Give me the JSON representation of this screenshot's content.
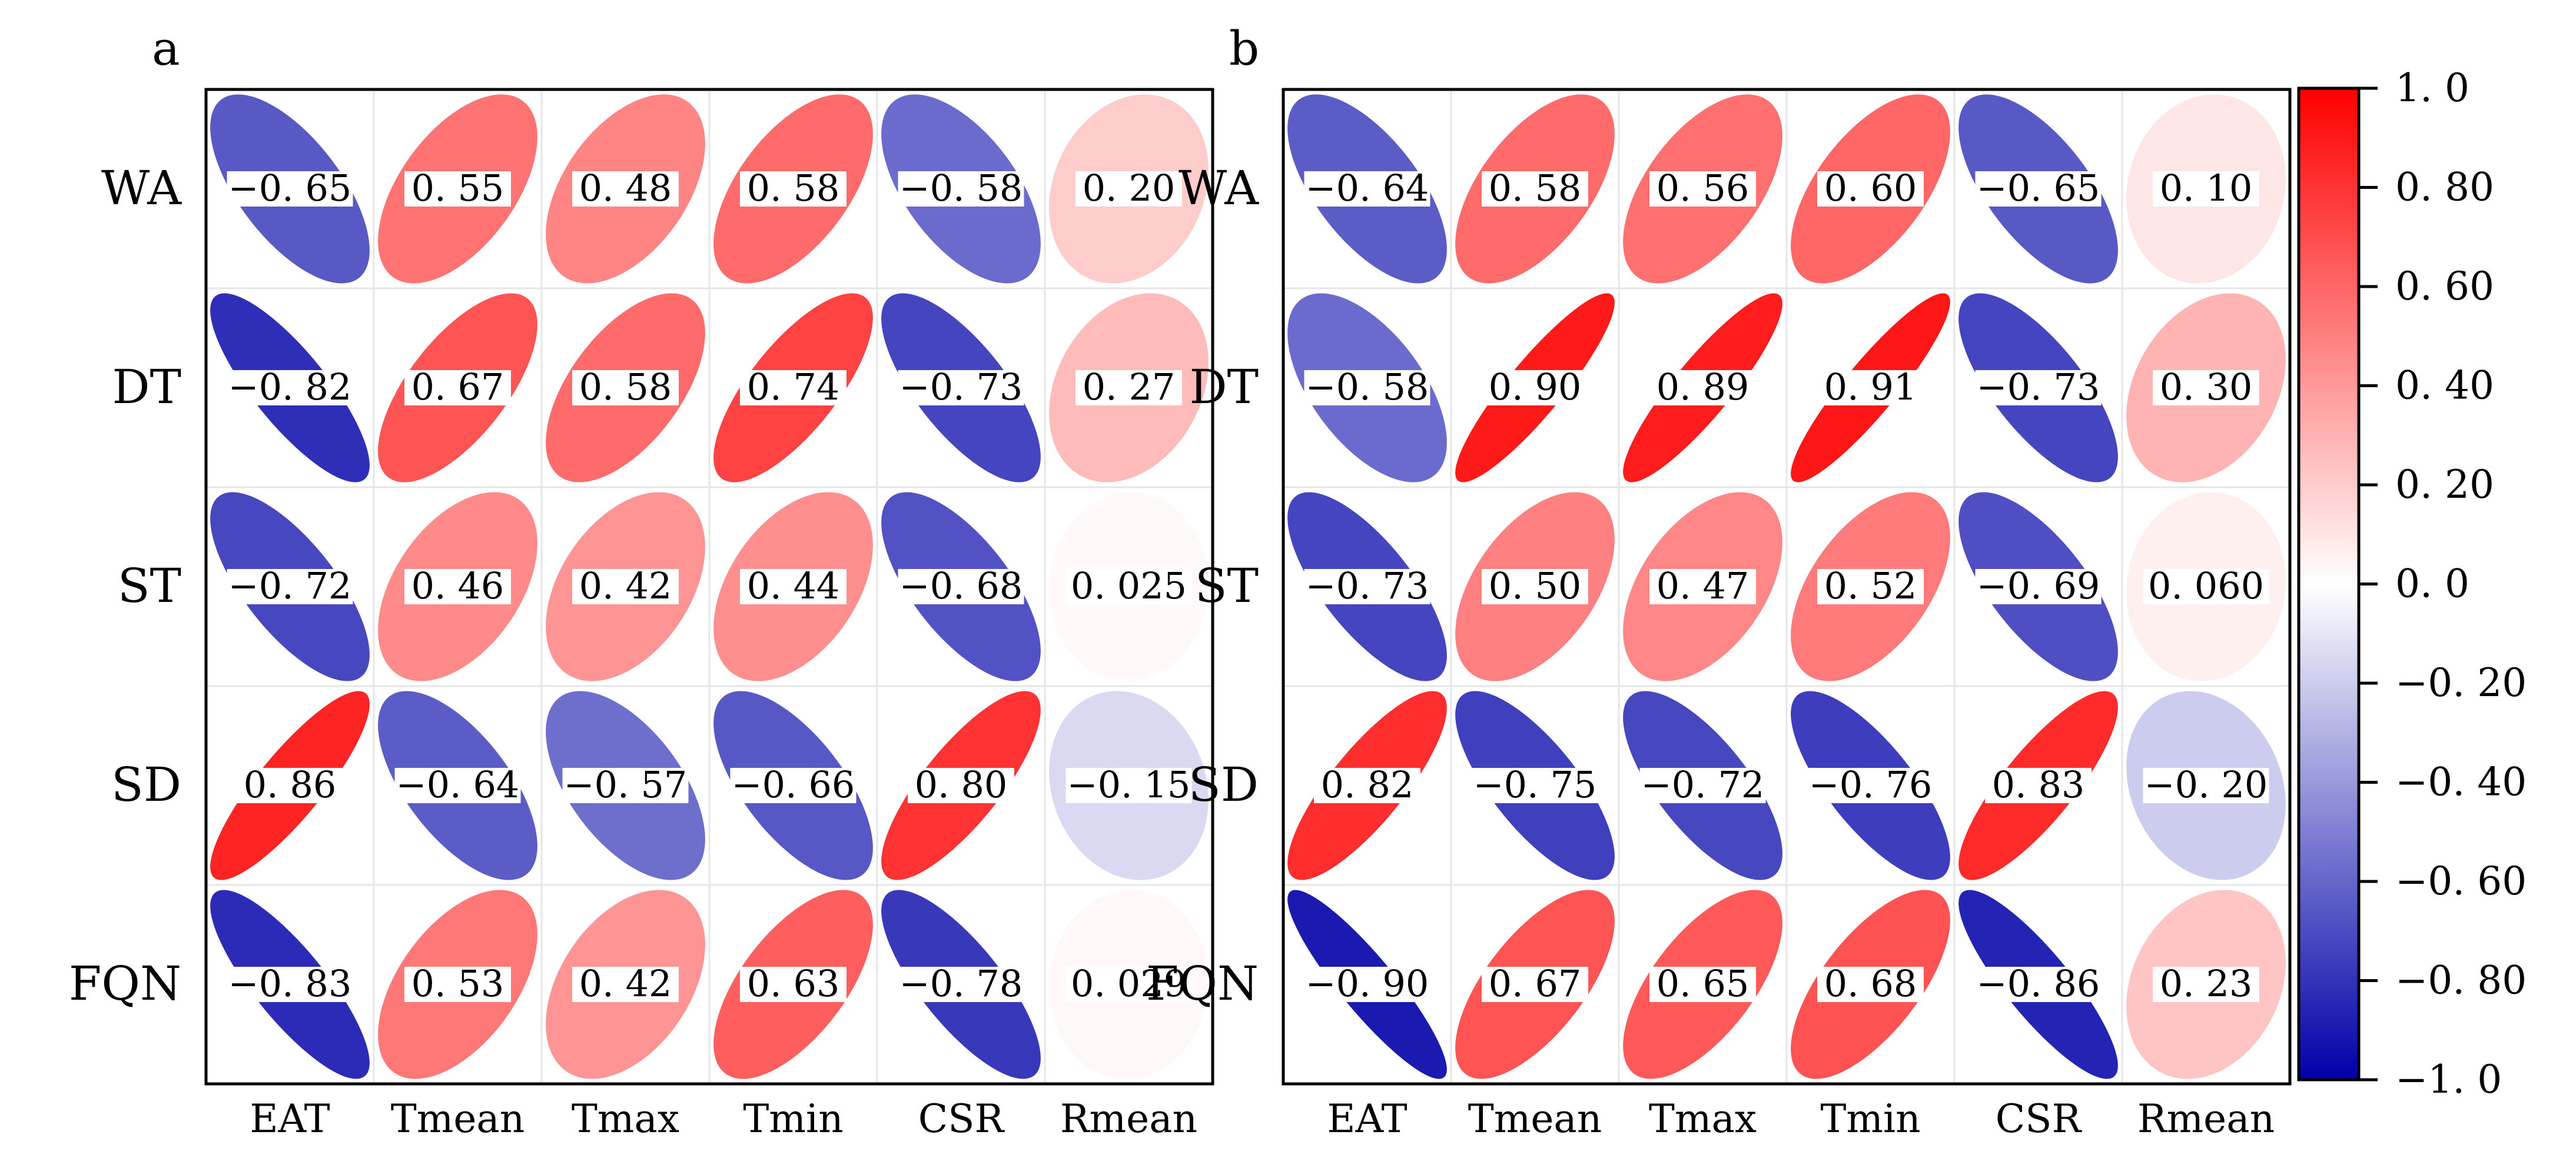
{
  "chart_data": [
    {
      "type": "heatmap",
      "panel_label": "a",
      "rows": [
        "WA",
        "DT",
        "ST",
        "SD",
        "FQN"
      ],
      "columns": [
        "EAT",
        "Tmean",
        "Tmax",
        "Tmin",
        "CSR",
        "Rmean"
      ],
      "values": [
        [
          -0.65,
          0.55,
          0.48,
          0.58,
          -0.58,
          0.2
        ],
        [
          -0.82,
          0.67,
          0.58,
          0.74,
          -0.73,
          0.27
        ],
        [
          -0.72,
          0.46,
          0.42,
          0.44,
          -0.68,
          0.025
        ],
        [
          0.86,
          -0.64,
          -0.57,
          -0.66,
          0.8,
          -0.15
        ],
        [
          -0.83,
          0.53,
          0.42,
          0.63,
          -0.78,
          0.029
        ]
      ],
      "value_labels": [
        [
          "−0. 65",
          "0. 55",
          "0. 48",
          "0. 58",
          "−0. 58",
          "0. 20"
        ],
        [
          "−0. 82",
          "0. 67",
          "0. 58",
          "0. 74",
          "−0. 73",
          "0. 27"
        ],
        [
          "−0. 72",
          "0. 46",
          "0. 42",
          "0. 44",
          "−0. 68",
          "0. 025"
        ],
        [
          "0. 86",
          "−0. 64",
          "−0. 57",
          "−0. 66",
          "0. 80",
          "−0. 15"
        ],
        [
          "−0. 83",
          "0. 53",
          "0. 42",
          "0. 63",
          "−0. 78",
          "0. 029"
        ]
      ]
    },
    {
      "type": "heatmap",
      "panel_label": "b",
      "rows": [
        "WA",
        "DT",
        "ST",
        "SD",
        "FQN"
      ],
      "columns": [
        "EAT",
        "Tmean",
        "Tmax",
        "Tmin",
        "CSR",
        "Rmean"
      ],
      "values": [
        [
          -0.64,
          0.58,
          0.56,
          0.6,
          -0.65,
          0.1
        ],
        [
          -0.58,
          0.9,
          0.89,
          0.91,
          -0.73,
          0.3
        ],
        [
          -0.73,
          0.5,
          0.47,
          0.52,
          -0.69,
          0.06
        ],
        [
          0.82,
          -0.75,
          -0.72,
          -0.76,
          0.83,
          -0.2
        ],
        [
          -0.9,
          0.67,
          0.65,
          0.68,
          -0.86,
          0.23
        ]
      ],
      "value_labels": [
        [
          "−0. 64",
          "0. 58",
          "0. 56",
          "0. 60",
          "−0. 65",
          "0. 10"
        ],
        [
          "−0. 58",
          "0. 90",
          "0. 89",
          "0. 91",
          "−0. 73",
          "0. 30"
        ],
        [
          "−0. 73",
          "0. 50",
          "0. 47",
          "0. 52",
          "−0. 69",
          "0. 060"
        ],
        [
          "0. 82",
          "−0. 75",
          "−0. 72",
          "−0. 76",
          "0. 83",
          "−0. 20"
        ],
        [
          "−0. 90",
          "0. 67",
          "0. 65",
          "0. 68",
          "−0. 86",
          "0. 23"
        ]
      ]
    }
  ],
  "colorbar": {
    "range": [
      -1.0,
      1.0
    ],
    "colors": {
      "negative": "#0000a8",
      "zero": "#ffffff",
      "positive": "#ff0000"
    },
    "tick_values": [
      1.0,
      0.8,
      0.6,
      0.4,
      0.2,
      0.0,
      -0.2,
      -0.4,
      -0.6,
      -0.8,
      -1.0
    ],
    "tick_labels": [
      "1. 0",
      "0. 80",
      "0. 60",
      "0. 40",
      "0. 20",
      "0. 0",
      "−0. 20",
      "−0. 40",
      "−0. 60",
      "−0. 80",
      "−1. 0"
    ]
  }
}
